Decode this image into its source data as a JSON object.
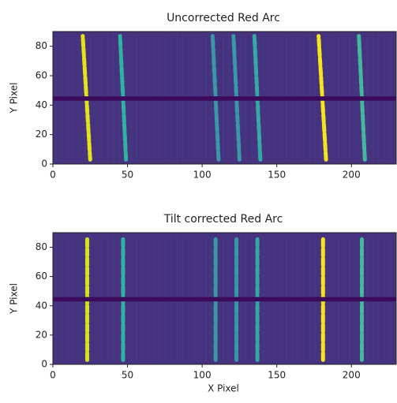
{
  "chart_data": [
    {
      "type": "image",
      "title": "Uncorrected Red Arc",
      "ylabel": "Y Pixel",
      "xlim": [
        0,
        230
      ],
      "ylim": [
        0,
        90
      ],
      "xticks": [
        0,
        50,
        100,
        150,
        200
      ],
      "yticks": [
        0,
        20,
        40,
        60,
        80
      ],
      "background": "#46327e",
      "gap": [
        43,
        46
      ],
      "gap_color": "#3b0a5a",
      "arcs": [
        {
          "x": [
            25,
            20
          ],
          "y": [
            3,
            87
          ],
          "color": "#e3e418"
        },
        {
          "x": [
            49,
            45
          ],
          "y": [
            3,
            87
          ],
          "color": "#2fb2a0"
        },
        {
          "x": [
            111,
            107
          ],
          "y": [
            3,
            87
          ],
          "color": "#3a97a6"
        },
        {
          "x": [
            125,
            121
          ],
          "y": [
            3,
            87
          ],
          "color": "#3a97a6"
        },
        {
          "x": [
            139,
            135
          ],
          "y": [
            3,
            87
          ],
          "color": "#35a9a5"
        },
        {
          "x": [
            183,
            178
          ],
          "y": [
            3,
            87
          ],
          "color": "#f5e51c"
        },
        {
          "x": [
            209,
            205
          ],
          "y": [
            3,
            87
          ],
          "color": "#44b89c"
        }
      ]
    },
    {
      "type": "image",
      "title": "Tilt corrected Red Arc",
      "xlabel": "X Pixel",
      "ylabel": "Y Pixel",
      "xlim": [
        0,
        230
      ],
      "ylim": [
        0,
        90
      ],
      "xticks": [
        0,
        50,
        100,
        150,
        200
      ],
      "yticks": [
        0,
        20,
        40,
        60,
        80
      ],
      "background": "#46327e",
      "gap": [
        43,
        46
      ],
      "gap_color": "#3b0a5a",
      "arcs": [
        {
          "x": [
            23,
            23
          ],
          "y": [
            3,
            87
          ],
          "color": "#d5e21a"
        },
        {
          "x": [
            47,
            47
          ],
          "y": [
            3,
            87
          ],
          "color": "#2fb2a0"
        },
        {
          "x": [
            109,
            109
          ],
          "y": [
            3,
            87
          ],
          "color": "#3a97a6"
        },
        {
          "x": [
            123,
            123
          ],
          "y": [
            3,
            87
          ],
          "color": "#3a97a6"
        },
        {
          "x": [
            137,
            137
          ],
          "y": [
            3,
            87
          ],
          "color": "#35a9a5"
        },
        {
          "x": [
            181,
            181
          ],
          "y": [
            3,
            87
          ],
          "color": "#f5e51c"
        },
        {
          "x": [
            207,
            207
          ],
          "y": [
            3,
            87
          ],
          "color": "#44b89c"
        }
      ]
    }
  ]
}
